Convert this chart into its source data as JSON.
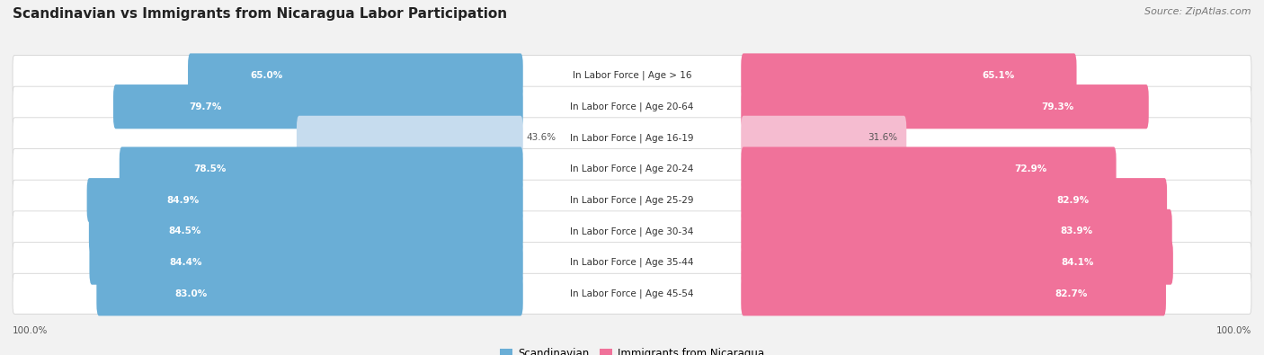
{
  "title": "Scandinavian vs Immigrants from Nicaragua Labor Participation",
  "source": "Source: ZipAtlas.com",
  "categories": [
    "In Labor Force | Age > 16",
    "In Labor Force | Age 20-64",
    "In Labor Force | Age 16-19",
    "In Labor Force | Age 20-24",
    "In Labor Force | Age 25-29",
    "In Labor Force | Age 30-34",
    "In Labor Force | Age 35-44",
    "In Labor Force | Age 45-54"
  ],
  "scandinavian": [
    65.0,
    79.7,
    43.6,
    78.5,
    84.9,
    84.5,
    84.4,
    83.0
  ],
  "nicaragua": [
    65.1,
    79.3,
    31.6,
    72.9,
    82.9,
    83.9,
    84.1,
    82.7
  ],
  "scand_color": "#6aaed6",
  "scand_color_light": "#c6dcee",
  "nic_color": "#f0729a",
  "nic_color_light": "#f5bcd0",
  "bg_color": "#f2f2f2",
  "row_bg": "#ffffff",
  "max_val": 100.0,
  "legend_scand": "Scandinavian",
  "legend_nic": "Immigrants from Nicaragua",
  "title_fontsize": 11,
  "source_fontsize": 8,
  "label_fontsize": 7.5,
  "val_fontsize": 7.5,
  "bottom_label": "100.0%"
}
